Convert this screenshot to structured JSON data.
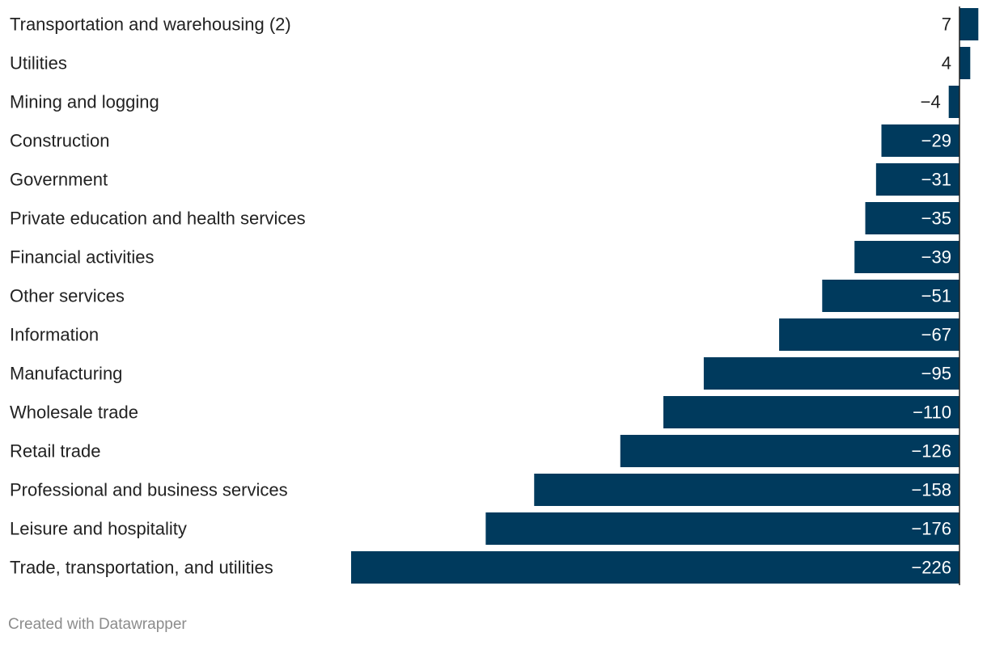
{
  "chart_data": {
    "type": "bar",
    "orientation": "horizontal",
    "categories": [
      "Transportation and warehousing (2)",
      "Utilities",
      "Mining and logging",
      "Construction",
      "Government",
      "Private education and health services",
      "Financial activities",
      "Other services",
      "Information",
      "Manufacturing",
      "Wholesale trade",
      "Retail trade",
      "Professional and business services",
      "Leisure and hospitality",
      "Trade, transportation, and utilities"
    ],
    "values": [
      7,
      4,
      -4,
      -29,
      -31,
      -35,
      -39,
      -51,
      -67,
      -95,
      -110,
      -126,
      -158,
      -176,
      -226
    ],
    "value_labels": [
      "7",
      "4",
      "−4",
      "−29",
      "−31",
      "−35",
      "−39",
      "−51",
      "−67",
      "−95",
      "−110",
      "−126",
      "−158",
      "−176",
      "−226"
    ],
    "xlim": [
      -226,
      7
    ],
    "bar_color": "#003a5d",
    "title": "",
    "xlabel": "",
    "ylabel": "",
    "grid": false,
    "legend": "none"
  },
  "footer": {
    "credit": "Created with Datawrapper"
  },
  "colors": {
    "bar": "#003a5d",
    "label_inside": "#ffffff",
    "label_outside": "#222222",
    "axis_line": "#222222",
    "credit": "#8c8c8c"
  }
}
